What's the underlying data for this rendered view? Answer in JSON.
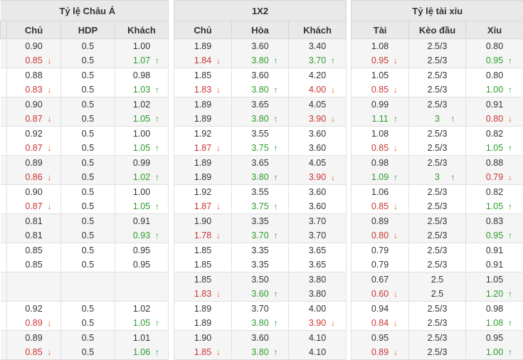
{
  "table": {
    "groups": [
      {
        "title": "Tỷ lệ Châu Á",
        "cols": [
          "Chủ",
          "HDP",
          "Khách"
        ]
      },
      {
        "title": "1X2",
        "cols": [
          "Chủ",
          "Hòa",
          "Khách"
        ]
      },
      {
        "title": "Tỷ lệ tài xỉu",
        "cols": [
          "Tài",
          "Kèo đầu",
          "Xỉu"
        ]
      }
    ],
    "icons": {
      "up": "↑",
      "down": "↓"
    },
    "colors": {
      "header_bg": "#e9e9e9",
      "stripe_bg": "#f5f5f5",
      "up_text": "#2e9b2e",
      "down_text": "#cc3333",
      "down_arrow": "#e0622a"
    },
    "pairs": [
      {
        "rows": [
          [
            {
              "v": "0.90"
            },
            {
              "v": "0.5"
            },
            {
              "v": "1.00"
            },
            {
              "v": "1.89"
            },
            {
              "v": "3.60"
            },
            {
              "v": "3.40"
            },
            {
              "v": "1.08"
            },
            {
              "v": "2.5/3"
            },
            {
              "v": "0.80"
            }
          ],
          [
            {
              "v": "0.85",
              "t": "dn"
            },
            {
              "v": "0.5"
            },
            {
              "v": "1.07",
              "t": "up"
            },
            {
              "v": "1.84",
              "t": "dn"
            },
            {
              "v": "3.80",
              "t": "up"
            },
            {
              "v": "3.70",
              "t": "up"
            },
            {
              "v": "0.95",
              "t": "dn"
            },
            {
              "v": "2.5/3"
            },
            {
              "v": "0.95",
              "t": "up"
            }
          ]
        ]
      },
      {
        "rows": [
          [
            {
              "v": "0.88"
            },
            {
              "v": "0.5"
            },
            {
              "v": "0.98"
            },
            {
              "v": "1.85"
            },
            {
              "v": "3.60"
            },
            {
              "v": "4.20"
            },
            {
              "v": "1.05"
            },
            {
              "v": "2.5/3"
            },
            {
              "v": "0.80"
            }
          ],
          [
            {
              "v": "0.83",
              "t": "dn"
            },
            {
              "v": "0.5"
            },
            {
              "v": "1.03",
              "t": "up"
            },
            {
              "v": "1.83",
              "t": "dn"
            },
            {
              "v": "3.80",
              "t": "up"
            },
            {
              "v": "4.00",
              "t": "dn"
            },
            {
              "v": "0.85",
              "t": "dn"
            },
            {
              "v": "2.5/3"
            },
            {
              "v": "1.00",
              "t": "up"
            }
          ]
        ]
      },
      {
        "rows": [
          [
            {
              "v": "0.90"
            },
            {
              "v": "0.5"
            },
            {
              "v": "1.02"
            },
            {
              "v": "1.89"
            },
            {
              "v": "3.65"
            },
            {
              "v": "4.05"
            },
            {
              "v": "0.99"
            },
            {
              "v": "2.5/3"
            },
            {
              "v": "0.91"
            }
          ],
          [
            {
              "v": "0.87",
              "t": "dn"
            },
            {
              "v": "0.5"
            },
            {
              "v": "1.05",
              "t": "up"
            },
            {
              "v": "1.89"
            },
            {
              "v": "3.80",
              "t": "up"
            },
            {
              "v": "3.90",
              "t": "dn"
            },
            {
              "v": "1.11",
              "t": "up"
            },
            {
              "v": "3",
              "t": "up"
            },
            {
              "v": "0.80",
              "t": "dn"
            }
          ]
        ]
      },
      {
        "rows": [
          [
            {
              "v": "0.92"
            },
            {
              "v": "0.5"
            },
            {
              "v": "1.00"
            },
            {
              "v": "1.92"
            },
            {
              "v": "3.55"
            },
            {
              "v": "3.60"
            },
            {
              "v": "1.08"
            },
            {
              "v": "2.5/3"
            },
            {
              "v": "0.82"
            }
          ],
          [
            {
              "v": "0.87",
              "t": "dn"
            },
            {
              "v": "0.5"
            },
            {
              "v": "1.05",
              "t": "up"
            },
            {
              "v": "1.87",
              "t": "dn"
            },
            {
              "v": "3.75",
              "t": "up"
            },
            {
              "v": "3.60"
            },
            {
              "v": "0.85",
              "t": "dn"
            },
            {
              "v": "2.5/3"
            },
            {
              "v": "1.05",
              "t": "up"
            }
          ]
        ]
      },
      {
        "rows": [
          [
            {
              "v": "0.89"
            },
            {
              "v": "0.5"
            },
            {
              "v": "0.99"
            },
            {
              "v": "1.89"
            },
            {
              "v": "3.65"
            },
            {
              "v": "4.05"
            },
            {
              "v": "0.98"
            },
            {
              "v": "2.5/3"
            },
            {
              "v": "0.88"
            }
          ],
          [
            {
              "v": "0.86",
              "t": "dn"
            },
            {
              "v": "0.5"
            },
            {
              "v": "1.02",
              "t": "up"
            },
            {
              "v": "1.89"
            },
            {
              "v": "3.80",
              "t": "up"
            },
            {
              "v": "3.90",
              "t": "dn"
            },
            {
              "v": "1.09",
              "t": "up"
            },
            {
              "v": "3",
              "t": "up"
            },
            {
              "v": "0.79",
              "t": "dn"
            }
          ]
        ]
      },
      {
        "rows": [
          [
            {
              "v": "0.90"
            },
            {
              "v": "0.5"
            },
            {
              "v": "1.00"
            },
            {
              "v": "1.92"
            },
            {
              "v": "3.55"
            },
            {
              "v": "3.60"
            },
            {
              "v": "1.06"
            },
            {
              "v": "2.5/3"
            },
            {
              "v": "0.82"
            }
          ],
          [
            {
              "v": "0.87",
              "t": "dn"
            },
            {
              "v": "0.5"
            },
            {
              "v": "1.05",
              "t": "up"
            },
            {
              "v": "1.87",
              "t": "dn"
            },
            {
              "v": "3.75",
              "t": "up"
            },
            {
              "v": "3.60"
            },
            {
              "v": "0.85",
              "t": "dn"
            },
            {
              "v": "2.5/3"
            },
            {
              "v": "1.05",
              "t": "up"
            }
          ]
        ]
      },
      {
        "rows": [
          [
            {
              "v": "0.81"
            },
            {
              "v": "0.5"
            },
            {
              "v": "0.91"
            },
            {
              "v": "1.90"
            },
            {
              "v": "3.35"
            },
            {
              "v": "3.70"
            },
            {
              "v": "0.89"
            },
            {
              "v": "2.5/3"
            },
            {
              "v": "0.83"
            }
          ],
          [
            {
              "v": "0.81"
            },
            {
              "v": "0.5"
            },
            {
              "v": "0.93",
              "t": "up"
            },
            {
              "v": "1.78",
              "t": "dn"
            },
            {
              "v": "3.70",
              "t": "up"
            },
            {
              "v": "3.70"
            },
            {
              "v": "0.80",
              "t": "dn"
            },
            {
              "v": "2.5/3"
            },
            {
              "v": "0.95",
              "t": "up"
            }
          ]
        ]
      },
      {
        "rows": [
          [
            {
              "v": "0.85"
            },
            {
              "v": "0.5"
            },
            {
              "v": "0.95"
            },
            {
              "v": "1.85"
            },
            {
              "v": "3.35"
            },
            {
              "v": "3.65"
            },
            {
              "v": "0.79"
            },
            {
              "v": "2.5/3"
            },
            {
              "v": "0.91"
            }
          ],
          [
            {
              "v": "0.85"
            },
            {
              "v": "0.5"
            },
            {
              "v": "0.95"
            },
            {
              "v": "1.85"
            },
            {
              "v": "3.35"
            },
            {
              "v": "3.65"
            },
            {
              "v": "0.79"
            },
            {
              "v": "2.5/3"
            },
            {
              "v": "0.91"
            }
          ]
        ]
      },
      {
        "rows": [
          [
            {
              "v": ""
            },
            {
              "v": ""
            },
            {
              "v": ""
            },
            {
              "v": "1.85"
            },
            {
              "v": "3.50"
            },
            {
              "v": "3.80"
            },
            {
              "v": "0.67"
            },
            {
              "v": "2.5"
            },
            {
              "v": "1.05"
            }
          ],
          [
            {
              "v": ""
            },
            {
              "v": ""
            },
            {
              "v": ""
            },
            {
              "v": "1.83",
              "t": "dn"
            },
            {
              "v": "3.60",
              "t": "up"
            },
            {
              "v": "3.80"
            },
            {
              "v": "0.60",
              "t": "dn"
            },
            {
              "v": "2.5"
            },
            {
              "v": "1.20",
              "t": "up"
            }
          ]
        ]
      },
      {
        "rows": [
          [
            {
              "v": "0.92"
            },
            {
              "v": "0.5"
            },
            {
              "v": "1.02"
            },
            {
              "v": "1.89"
            },
            {
              "v": "3.70"
            },
            {
              "v": "4.00"
            },
            {
              "v": "0.94"
            },
            {
              "v": "2.5/3"
            },
            {
              "v": "0.98"
            }
          ],
          [
            {
              "v": "0.89",
              "t": "dn"
            },
            {
              "v": "0.5"
            },
            {
              "v": "1.05",
              "t": "up"
            },
            {
              "v": "1.89"
            },
            {
              "v": "3.80",
              "t": "up"
            },
            {
              "v": "3.90",
              "t": "dn"
            },
            {
              "v": "0.84",
              "t": "dn"
            },
            {
              "v": "2.5/3"
            },
            {
              "v": "1.08",
              "t": "up"
            }
          ]
        ]
      },
      {
        "rows": [
          [
            {
              "v": "0.89"
            },
            {
              "v": "0.5"
            },
            {
              "v": "1.01"
            },
            {
              "v": "1.90"
            },
            {
              "v": "3.60"
            },
            {
              "v": "4.10"
            },
            {
              "v": "0.95"
            },
            {
              "v": "2.5/3"
            },
            {
              "v": "0.95"
            }
          ],
          [
            {
              "v": "0.85",
              "t": "dn"
            },
            {
              "v": "0.5"
            },
            {
              "v": "1.06",
              "t": "up"
            },
            {
              "v": "1.85",
              "t": "dn"
            },
            {
              "v": "3.80",
              "t": "up"
            },
            {
              "v": "4.10"
            },
            {
              "v": "0.89",
              "t": "dn"
            },
            {
              "v": "2.5/3"
            },
            {
              "v": "1.00",
              "t": "up"
            }
          ]
        ]
      }
    ]
  }
}
